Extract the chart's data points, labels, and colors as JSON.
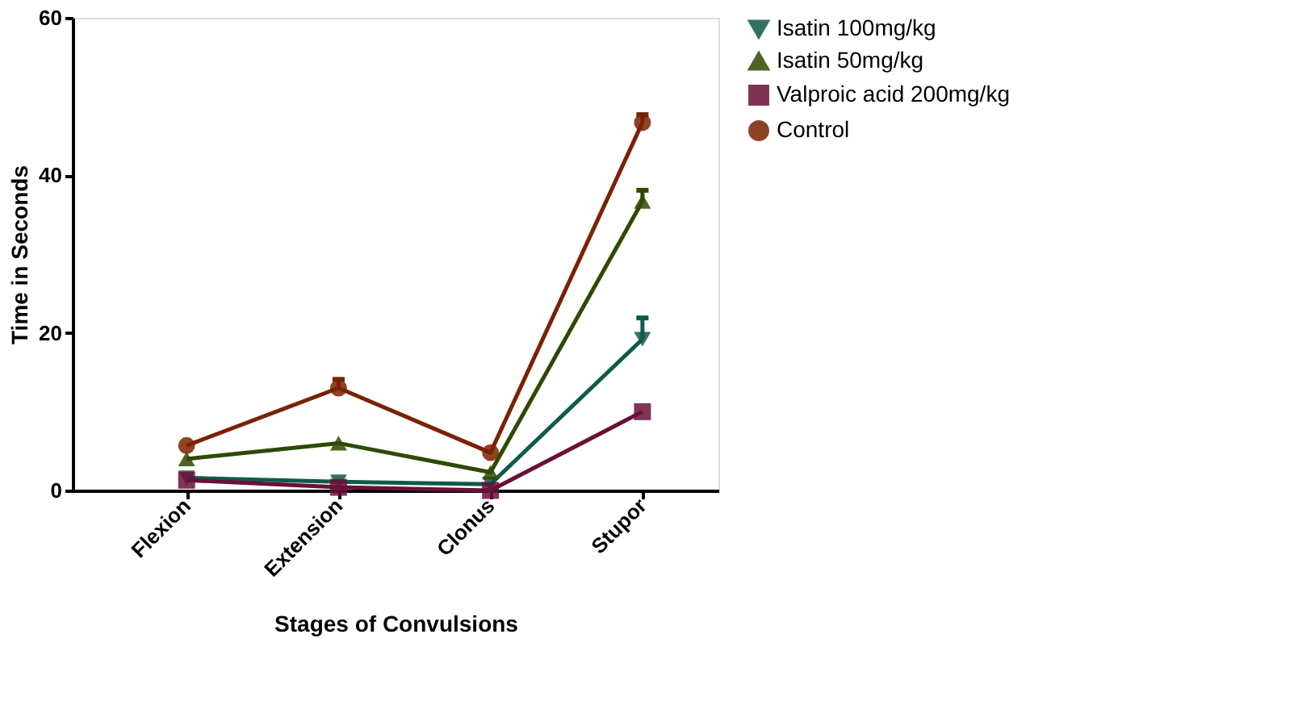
{
  "chart_data": {
    "type": "line",
    "xlabel": "Stages of Convulsions",
    "ylabel": "Time in Seconds",
    "categories": [
      "Flexion",
      "Extension",
      "Clonus",
      "Stupor"
    ],
    "ylim": [
      0,
      60
    ],
    "yticks": [
      0,
      20,
      40,
      60
    ],
    "grid": false,
    "legend": "top right",
    "line_style": "solid",
    "series": [
      {
        "name": "Isatin 100mg/kg",
        "color": "#0f5a4a",
        "marker": "triangle-down",
        "values": [
          1.6,
          1.1,
          0.8,
          19.2
        ],
        "errors": [
          null,
          null,
          null,
          [
            19.2,
            21.9
          ]
        ]
      },
      {
        "name": "Isatin 50mg/kg",
        "color": "#2d4a00",
        "marker": "triangle",
        "values": [
          4.0,
          6.0,
          2.3,
          36.7
        ],
        "errors": [
          null,
          null,
          null,
          [
            36.7,
            38.1
          ]
        ]
      },
      {
        "name": "Valproic acid 200mg/kg",
        "color": "#6a1038",
        "marker": "square",
        "values": [
          1.3,
          0.4,
          0.0,
          10.0
        ]
      },
      {
        "name": "Control",
        "color": "#7a2200",
        "marker": "circle",
        "values": [
          5.7,
          13.0,
          4.8,
          46.7
        ],
        "errors": [
          null,
          [
            13.0,
            14.1
          ],
          null,
          [
            46.7,
            47.7
          ]
        ]
      }
    ]
  }
}
